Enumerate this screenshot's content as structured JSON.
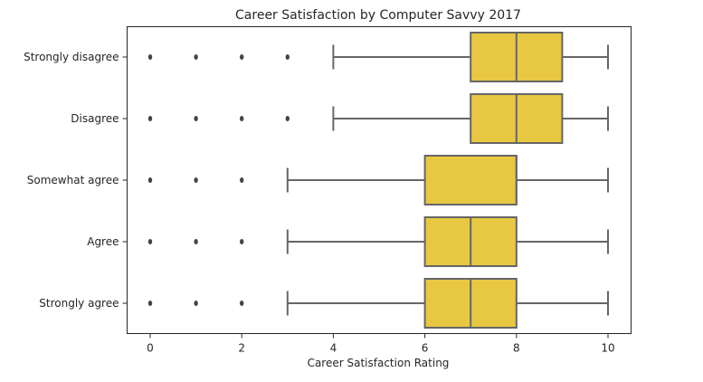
{
  "chart_data": {
    "type": "boxplot",
    "orientation": "horizontal",
    "title": "Career Satisfaction by Computer Savvy 2017",
    "xlabel": "Career Satisfaction Rating",
    "ylabel": "",
    "xlim": [
      -0.5,
      10.5
    ],
    "xticks": [
      0,
      2,
      4,
      6,
      8,
      10
    ],
    "grid": false,
    "box_color": "#e8c842",
    "line_color": "#666666",
    "categories": [
      "Strongly disagree",
      "Disagree",
      "Somewhat agree",
      "Agree",
      "Strongly agree"
    ],
    "boxes": [
      {
        "category": "Strongly disagree",
        "whisker_low": 4,
        "q1": 7,
        "median": 8,
        "q3": 9,
        "whisker_high": 10,
        "outliers": [
          0,
          1,
          2,
          3
        ]
      },
      {
        "category": "Disagree",
        "whisker_low": 4,
        "q1": 7,
        "median": 8,
        "q3": 9,
        "whisker_high": 10,
        "outliers": [
          0,
          1,
          2,
          3
        ]
      },
      {
        "category": "Somewhat agree",
        "whisker_low": 3,
        "q1": 6,
        "median": 8,
        "q3": 8,
        "whisker_high": 10,
        "outliers": [
          0,
          1,
          2
        ]
      },
      {
        "category": "Agree",
        "whisker_low": 3,
        "q1": 6,
        "median": 7,
        "q3": 8,
        "whisker_high": 10,
        "outliers": [
          0,
          1,
          2
        ]
      },
      {
        "category": "Strongly agree",
        "whisker_low": 3,
        "q1": 6,
        "median": 7,
        "q3": 8,
        "whisker_high": 10,
        "outliers": [
          0,
          1,
          2
        ]
      }
    ]
  }
}
